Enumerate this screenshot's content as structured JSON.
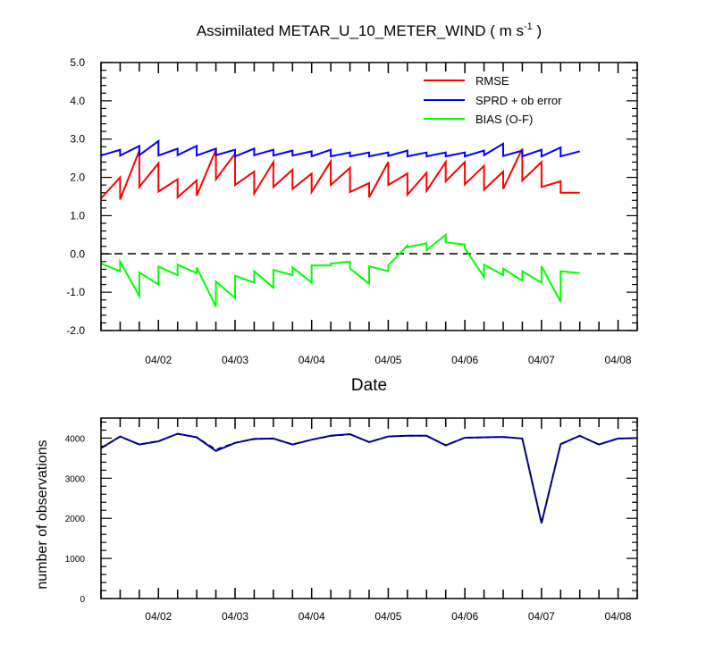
{
  "chart_data": [
    {
      "type": "line",
      "title": "Assimilated METAR_U_10_METER_WIND ( m s",
      "title_sup": "-1",
      "title_end": " )",
      "xlabel": "Date",
      "ylabel": "",
      "ylim": [
        -2.0,
        5.0
      ],
      "xlim": [
        "2011-04-01T06:00",
        "2011-04-08T06:00"
      ],
      "yticks": [
        "-2.0",
        "-1.0",
        "0.0",
        "1.0",
        "2.0",
        "3.0",
        "4.0",
        "5.0"
      ],
      "ytick_values": [
        -2,
        -1,
        0,
        1,
        2,
        3,
        4,
        5
      ],
      "xtick_labels": [
        "04/02",
        "04/03",
        "04/04",
        "04/05",
        "04/06",
        "04/07",
        "04/08"
      ],
      "xtick_dates": [
        "2011-04-02T00:00",
        "2011-04-03T00:00",
        "2011-04-04T00:00",
        "2011-04-05T00:00",
        "2011-04-06T00:00",
        "2011-04-07T00:00",
        "2011-04-08T00:00"
      ],
      "reference_line": 0.0,
      "legend_position": "top-right",
      "x": [
        "2011-04-01T06:00",
        "2011-04-01T12:00",
        "2011-04-01T18:00",
        "2011-04-02T00:00",
        "2011-04-02T06:00",
        "2011-04-02T12:00",
        "2011-04-02T18:00",
        "2011-04-03T00:00",
        "2011-04-03T06:00",
        "2011-04-03T12:00",
        "2011-04-03T18:00",
        "2011-04-04T00:00",
        "2011-04-04T06:00",
        "2011-04-04T12:00",
        "2011-04-04T18:00",
        "2011-04-05T00:00",
        "2011-04-05T06:00",
        "2011-04-05T12:00",
        "2011-04-05T18:00",
        "2011-04-06T00:00",
        "2011-04-06T06:00",
        "2011-04-06T12:00",
        "2011-04-06T18:00",
        "2011-04-07T00:00",
        "2011-04-07T06:00",
        "2011-04-07T12:00",
        "2011-04-07T18:00",
        "2011-04-08T00:00",
        "2011-04-08T06:00"
      ],
      "series": [
        {
          "name": "RMSE",
          "color": "#ff0000",
          "segments": [
            {
              "start": 1.45,
              "end": 2.0
            },
            {
              "start": 1.42,
              "end": 2.7
            },
            {
              "start": 1.75,
              "end": 2.37
            },
            {
              "start": 1.63,
              "end": 1.95
            },
            {
              "start": 1.48,
              "end": 1.92
            },
            {
              "start": 1.52,
              "end": 2.72
            },
            {
              "start": 1.95,
              "end": 2.62
            },
            {
              "start": 1.8,
              "end": 2.15
            },
            {
              "start": 1.58,
              "end": 2.4
            },
            {
              "start": 1.75,
              "end": 2.2
            },
            {
              "start": 1.7,
              "end": 2.1
            },
            {
              "start": 1.62,
              "end": 2.42
            },
            {
              "start": 1.8,
              "end": 2.25
            },
            {
              "start": 1.62,
              "end": 1.85
            },
            {
              "start": 1.48,
              "end": 2.4
            },
            {
              "start": 1.8,
              "end": 2.1
            },
            {
              "start": 1.55,
              "end": 2.12
            },
            {
              "start": 1.65,
              "end": 2.4
            },
            {
              "start": 1.9,
              "end": 2.4
            },
            {
              "start": 1.82,
              "end": 2.3
            },
            {
              "start": 1.68,
              "end": 2.15
            },
            {
              "start": 1.7,
              "end": 2.75
            },
            {
              "start": 1.92,
              "end": 2.4
            },
            {
              "start": 1.75,
              "end": 1.9
            },
            {
              "start": 1.6,
              "end": 1.6
            }
          ]
        },
        {
          "name": "SPRD + ob error",
          "color": "#0000ff",
          "segments": [
            {
              "start": 2.57,
              "end": 2.72
            },
            {
              "start": 2.57,
              "end": 2.82
            },
            {
              "start": 2.58,
              "end": 2.95
            },
            {
              "start": 2.57,
              "end": 2.75
            },
            {
              "start": 2.58,
              "end": 2.82
            },
            {
              "start": 2.57,
              "end": 2.75
            },
            {
              "start": 2.58,
              "end": 2.72
            },
            {
              "start": 2.55,
              "end": 2.75
            },
            {
              "start": 2.58,
              "end": 2.72
            },
            {
              "start": 2.57,
              "end": 2.7
            },
            {
              "start": 2.57,
              "end": 2.68
            },
            {
              "start": 2.55,
              "end": 2.72
            },
            {
              "start": 2.55,
              "end": 2.65
            },
            {
              "start": 2.55,
              "end": 2.65
            },
            {
              "start": 2.55,
              "end": 2.65
            },
            {
              "start": 2.56,
              "end": 2.7
            },
            {
              "start": 2.55,
              "end": 2.65
            },
            {
              "start": 2.55,
              "end": 2.65
            },
            {
              "start": 2.55,
              "end": 2.65
            },
            {
              "start": 2.55,
              "end": 2.7
            },
            {
              "start": 2.58,
              "end": 2.88
            },
            {
              "start": 2.56,
              "end": 2.7
            },
            {
              "start": 2.55,
              "end": 2.72
            },
            {
              "start": 2.55,
              "end": 2.78
            },
            {
              "start": 2.55,
              "end": 2.68
            }
          ]
        },
        {
          "name": "BIAS (O-F)",
          "color": "#00ff00",
          "segments": [
            {
              "start": -0.25,
              "end": -0.45
            },
            {
              "start": -0.2,
              "end": -1.1
            },
            {
              "start": -0.48,
              "end": -0.8
            },
            {
              "start": -0.33,
              "end": -0.55
            },
            {
              "start": -0.28,
              "end": -0.5
            },
            {
              "start": -0.35,
              "end": -1.38
            },
            {
              "start": -0.72,
              "end": -1.15
            },
            {
              "start": -0.57,
              "end": -0.75
            },
            {
              "start": -0.45,
              "end": -0.88
            },
            {
              "start": -0.42,
              "end": -0.55
            },
            {
              "start": -0.35,
              "end": -0.75
            },
            {
              "start": -0.3,
              "end": -0.3
            },
            {
              "start": -0.25,
              "end": -0.2
            },
            {
              "start": -0.38,
              "end": -0.78
            },
            {
              "start": -0.32,
              "end": -0.45
            },
            {
              "start": -0.3,
              "end": 0.22
            },
            {
              "start": 0.18,
              "end": 0.28
            },
            {
              "start": 0.1,
              "end": 0.5
            },
            {
              "start": 0.3,
              "end": 0.25
            },
            {
              "start": 0.15,
              "end": -0.6
            },
            {
              "start": -0.28,
              "end": -0.55
            },
            {
              "start": -0.38,
              "end": -0.7
            },
            {
              "start": -0.45,
              "end": -0.75
            },
            {
              "start": -0.32,
              "end": -1.25
            },
            {
              "start": -0.45,
              "end": -0.5
            }
          ]
        }
      ]
    },
    {
      "type": "line",
      "title": "",
      "xlabel": "",
      "ylabel": "number of observations",
      "ylim": [
        0,
        4500
      ],
      "xlim": [
        "2011-04-01T06:00",
        "2011-04-08T06:00"
      ],
      "yticks": [
        "0",
        "1000",
        "2000",
        "3000",
        "4000"
      ],
      "ytick_values": [
        0,
        1000,
        2000,
        3000,
        4000
      ],
      "xtick_labels": [
        "04/02",
        "04/03",
        "04/04",
        "04/05",
        "04/06",
        "04/07",
        "04/08"
      ],
      "xtick_dates": [
        "2011-04-02T00:00",
        "2011-04-03T00:00",
        "2011-04-04T00:00",
        "2011-04-05T00:00",
        "2011-04-06T00:00",
        "2011-04-07T00:00",
        "2011-04-08T00:00"
      ],
      "x": [
        "2011-04-01T06:00",
        "2011-04-01T12:00",
        "2011-04-01T18:00",
        "2011-04-02T00:00",
        "2011-04-02T06:00",
        "2011-04-02T12:00",
        "2011-04-02T18:00",
        "2011-04-03T00:00",
        "2011-04-03T06:00",
        "2011-04-03T12:00",
        "2011-04-03T18:00",
        "2011-04-04T00:00",
        "2011-04-04T06:00",
        "2011-04-04T12:00",
        "2011-04-04T18:00",
        "2011-04-05T00:00",
        "2011-04-05T06:00",
        "2011-04-05T12:00",
        "2011-04-05T18:00",
        "2011-04-06T00:00",
        "2011-04-06T06:00",
        "2011-04-06T12:00",
        "2011-04-06T18:00",
        "2011-04-07T00:00",
        "2011-04-07T06:00",
        "2011-04-07T12:00",
        "2011-04-07T18:00",
        "2011-04-08T00:00",
        "2011-04-08T06:00"
      ],
      "series": [
        {
          "color": "#0000cc",
          "dash": "solid",
          "values": [
            3750,
            4040,
            3840,
            3920,
            4110,
            4020,
            3680,
            3880,
            3980,
            3990,
            3840,
            3960,
            4060,
            4100,
            3900,
            4040,
            4060,
            4060,
            3820,
            4010,
            4020,
            4030,
            3990,
            1880,
            3850,
            4060,
            3840,
            3990,
            4000
          ]
        },
        {
          "color": "#000000",
          "dash": "dashed",
          "values": [
            3760,
            4030,
            3850,
            3930,
            4100,
            4020,
            3720,
            3890,
            3970,
            3990,
            3850,
            3960,
            4050,
            4090,
            3910,
            4040,
            4060,
            4060,
            3830,
            4010,
            4010,
            4030,
            3990,
            1890,
            3860,
            4060,
            3850,
            3990,
            4000
          ]
        }
      ]
    }
  ]
}
